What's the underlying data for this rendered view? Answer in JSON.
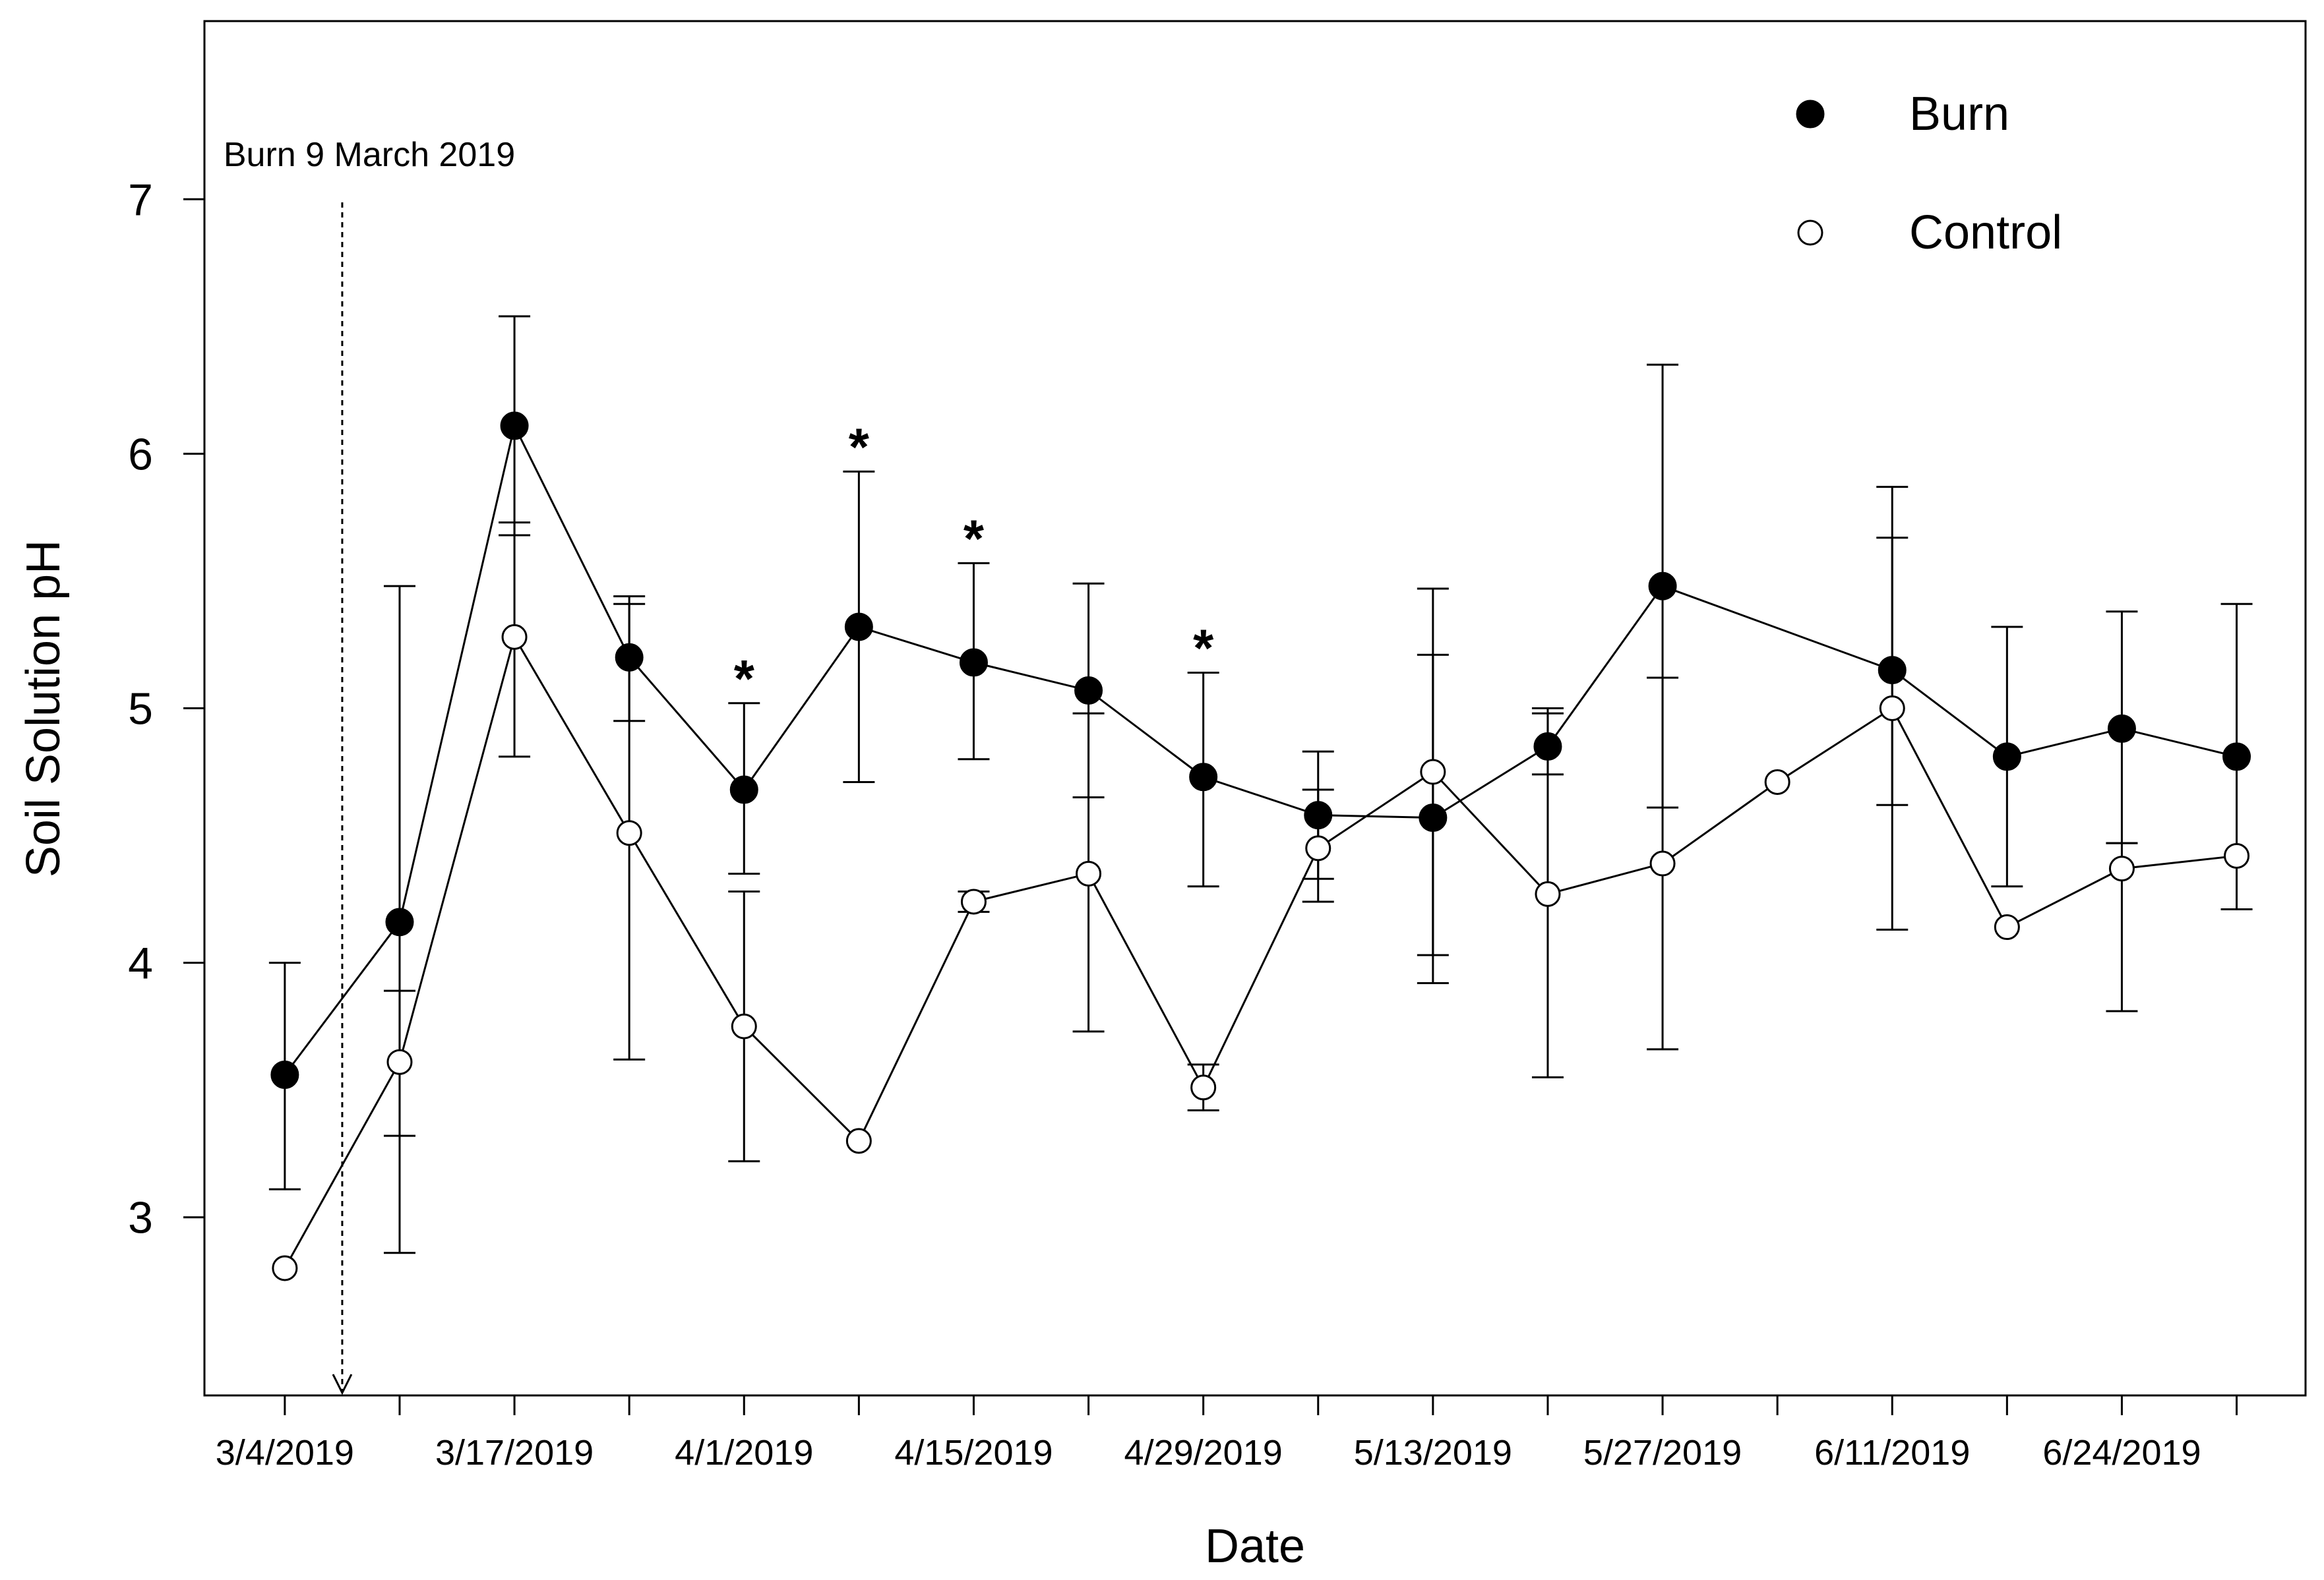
{
  "chart_data": {
    "type": "line",
    "xlabel": "Date",
    "ylabel": "Soil Solution pH",
    "ylim": [
      2.3,
      7.7
    ],
    "yticks": [
      3,
      4,
      5,
      6,
      7
    ],
    "x_index_range": [
      -0.7,
      17.6
    ],
    "categories": [
      "3/4/2019",
      "",
      "3/17/2019",
      "",
      "4/1/2019",
      "",
      "4/15/2019",
      "",
      "4/29/2019",
      "",
      "5/13/2019",
      "",
      "5/27/2019",
      "",
      "6/11/2019",
      "",
      "6/24/2019",
      ""
    ],
    "series": [
      {
        "name": "Burn",
        "marker": "filled-circle",
        "values": [
          3.56,
          4.16,
          6.11,
          5.2,
          4.68,
          5.32,
          5.18,
          5.07,
          4.73,
          4.58,
          4.57,
          4.85,
          5.48,
          null,
          5.15,
          4.81,
          4.92,
          4.81
        ],
        "err_low": [
          3.11,
          2.86,
          5.68,
          4.95,
          4.35,
          4.71,
          4.8,
          4.65,
          4.3,
          4.33,
          3.92,
          3.55,
          3.66,
          null,
          4.62,
          4.3,
          4.47,
          4.21
        ],
        "err_high": [
          4.0,
          5.48,
          6.54,
          5.44,
          5.02,
          5.93,
          5.57,
          5.49,
          5.14,
          4.83,
          5.21,
          5.0,
          6.35,
          null,
          5.87,
          5.32,
          5.38,
          5.41
        ]
      },
      {
        "name": "Control",
        "marker": "open-circle",
        "values": [
          2.8,
          3.61,
          5.28,
          4.51,
          3.75,
          3.3,
          4.24,
          4.35,
          3.51,
          4.45,
          4.75,
          4.27,
          4.39,
          4.71,
          5.0,
          4.14,
          4.37,
          4.42
        ],
        "err_low": [
          null,
          3.32,
          4.81,
          3.62,
          3.22,
          null,
          4.2,
          3.73,
          3.42,
          4.24,
          4.03,
          4.74,
          4.61,
          null,
          4.13,
          null,
          3.81,
          null
        ],
        "err_high": [
          null,
          3.89,
          5.73,
          5.41,
          4.28,
          null,
          4.28,
          4.98,
          3.6,
          4.68,
          5.47,
          4.98,
          5.12,
          null,
          5.67,
          null,
          4.47,
          null
        ]
      }
    ],
    "significance_marks": [
      {
        "index": 4,
        "label": "*"
      },
      {
        "index": 5,
        "label": "*"
      },
      {
        "index": 6,
        "label": "*"
      },
      {
        "index": 8,
        "label": "*"
      }
    ],
    "annotation": {
      "text": "Burn 9 March 2019",
      "x_index": 0.5
    },
    "legend": {
      "position": "top-right",
      "entries": [
        "Burn",
        "Control"
      ]
    }
  }
}
